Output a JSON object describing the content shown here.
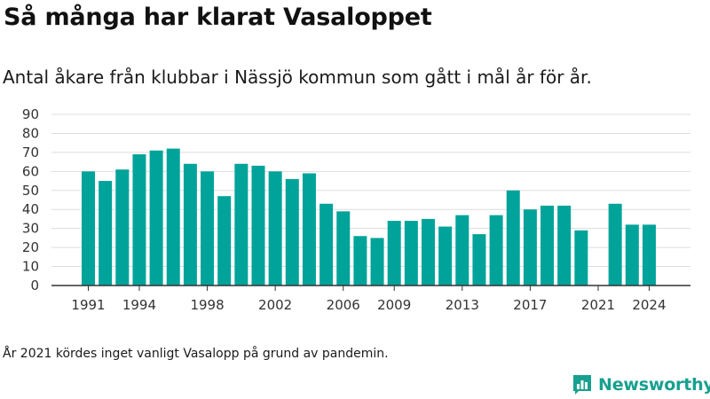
{
  "title": "Så många har klarat Vasaloppet",
  "subtitle": "Antal åkare från klubbar i Nässjö kommun som gått i mål år för år.",
  "footnote": "År 2021 kördes inget vanligt Vasalopp på grund av pandemin.",
  "brand": {
    "name": "Newsworthy",
    "color": "#17a08f"
  },
  "chart_data": {
    "type": "bar",
    "title": "",
    "xlabel": "",
    "ylabel": "",
    "ylim": [
      0,
      90
    ],
    "yticks": [
      0,
      10,
      20,
      30,
      40,
      50,
      60,
      70,
      80,
      90
    ],
    "xticks": [
      "1991",
      "1994",
      "1998",
      "2002",
      "2006",
      "2009",
      "2013",
      "2017",
      "2021",
      "2024"
    ],
    "grid": true,
    "bar_color": "#00a39a",
    "categories": [
      "1991",
      "1992",
      "1993",
      "1994",
      "1995",
      "1996",
      "1997",
      "1998",
      "1999",
      "2000",
      "2001",
      "2002",
      "2003",
      "2004",
      "2005",
      "2006",
      "2007",
      "2008",
      "2009",
      "2010",
      "2011",
      "2012",
      "2013",
      "2014",
      "2015",
      "2016",
      "2017",
      "2018",
      "2019",
      "2020",
      "2021",
      "2022",
      "2023",
      "2024"
    ],
    "values": [
      60,
      55,
      61,
      69,
      71,
      72,
      64,
      60,
      47,
      64,
      63,
      60,
      56,
      59,
      43,
      39,
      26,
      25,
      34,
      34,
      35,
      31,
      37,
      27,
      37,
      50,
      40,
      42,
      42,
      29,
      null,
      43,
      32,
      32
    ]
  }
}
